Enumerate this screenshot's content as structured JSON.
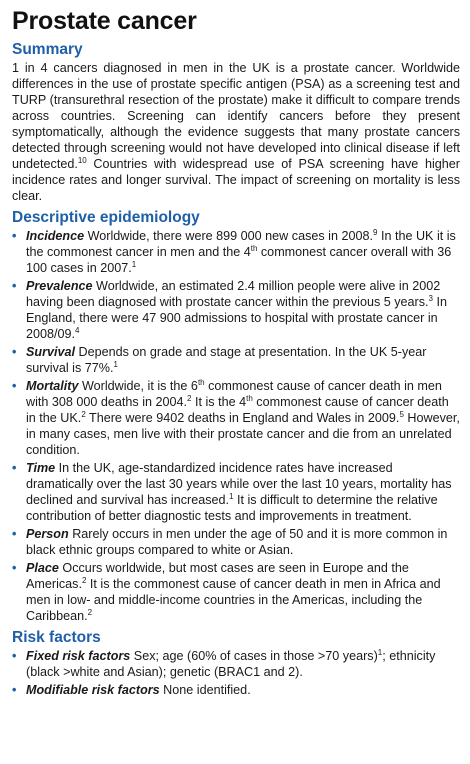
{
  "title": "Prostate cancer",
  "summary": {
    "heading": "Summary",
    "text": [
      "1 in 4 cancers diagnosed in men in the UK is a prostate cancer. Worldwide differences in the use of prostate specific antigen (PSA) as a screening test and TURP (transurethral resection of the prostate) make it difficult to compare trends across countries. Screening can identify cancers before they present symptomatically, although the evidence suggests that many prostate cancers detected through screening would not have developed into clinical disease if left undetected.",
      "10",
      " Countries with widespread use of PSA screening have higher incidence rates and longer survival. The impact of screening on mortality is less clear."
    ]
  },
  "descriptive": {
    "heading": "Descriptive epidemiology",
    "items": [
      {
        "term": "Incidence",
        "parts": [
          " Worldwide, there were 899 000 new cases in 2008.",
          "9",
          " In the UK it is the commonest cancer in men and the 4",
          "th",
          " commonest cancer overall with 36 100 cases in 2007.",
          "1",
          ""
        ]
      },
      {
        "term": "Prevalence",
        "parts": [
          " Worldwide, an estimated 2.4 million people were alive in 2002 having been diagnosed with prostate cancer within the previous 5 years.",
          "3",
          " In England, there were 47 900 admissions to hospital with prostate cancer in 2008/09.",
          "4",
          ""
        ]
      },
      {
        "term": "Survival",
        "parts": [
          " Depends on grade and stage at presentation. In the UK 5-year survival is 77%.",
          "1",
          ""
        ]
      },
      {
        "term": "Mortality",
        "parts": [
          " Worldwide, it is the 6",
          "th",
          " commonest cause of cancer death in men with 308 000 deaths in 2004.",
          "2",
          " It is the 4",
          "th",
          " commonest cause of cancer death in the UK.",
          "2",
          " There were 9402 deaths in England and Wales in 2009.",
          "5",
          " However, in many cases, men live with their prostate cancer and die from an unrelated condition."
        ]
      },
      {
        "term": "Time",
        "parts": [
          " In the UK, age-standardized incidence rates have increased dramatically over the last 30 years while over the last 10 years, mortality has declined and survival has increased.",
          "1",
          " It is difficult to determine the relative contribution of better diagnostic tests and improvements in treatment."
        ]
      },
      {
        "term": "Person",
        "parts": [
          " Rarely occurs in men under the age of 50 and it is more common in black ethnic groups compared to white or Asian."
        ]
      },
      {
        "term": "Place",
        "parts": [
          " Occurs worldwide, but most cases are seen in Europe and the Americas.",
          "2",
          " It is the commonest cause of cancer death in men in Africa and men in low- and middle-income countries in the Americas, including the Caribbean.",
          "2",
          ""
        ]
      }
    ]
  },
  "risk": {
    "heading": "Risk factors",
    "items": [
      {
        "term": "Fixed risk factors",
        "parts": [
          " Sex; age (60% of cases in those >70 years)",
          "1",
          "; ethnicity (black >white and Asian); genetic (BRAC1 and 2)."
        ]
      },
      {
        "term": "Modifiable risk factors",
        "parts": [
          " None identified."
        ]
      }
    ]
  }
}
